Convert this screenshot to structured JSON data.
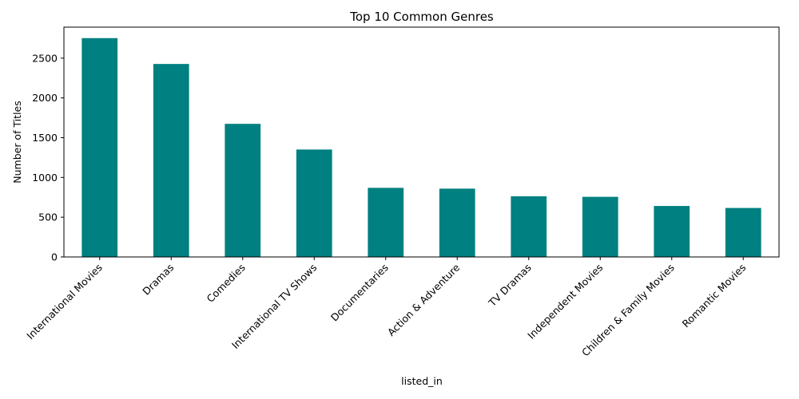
{
  "chart_data": {
    "type": "bar",
    "title": "Top 10 Common Genres",
    "xlabel": "listed_in",
    "ylabel": "Number of Titles",
    "categories": [
      "International Movies",
      "Dramas",
      "Comedies",
      "International TV Shows",
      "Documentaries",
      "Action & Adventure",
      "TV Dramas",
      "Independent Movies",
      "Children & Family Movies",
      "Romantic Movies"
    ],
    "values": [
      2752,
      2427,
      1674,
      1351,
      869,
      859,
      763,
      756,
      641,
      616
    ],
    "ylim": [
      0,
      2890
    ],
    "yticks": [
      0,
      500,
      1000,
      1500,
      2000,
      2500
    ],
    "grid": false,
    "legend": "none",
    "bar_color": "#008080"
  }
}
